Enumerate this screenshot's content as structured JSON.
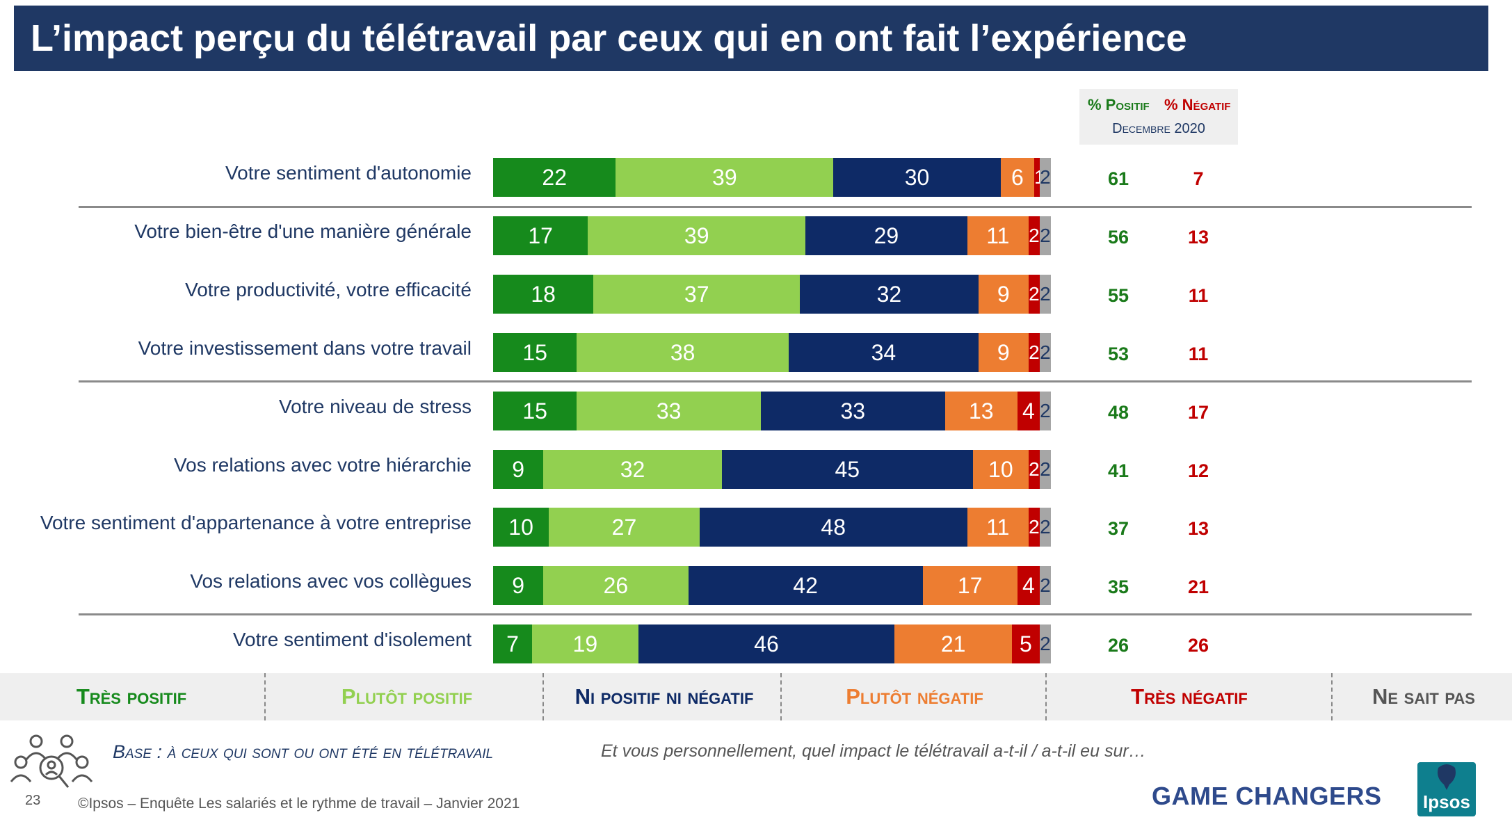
{
  "title": "L’impact perçu du télétravail par ceux qui en ont fait l’expérience",
  "header": {
    "positive_label": "% Positif",
    "negative_label": "% Négatif",
    "date": "Decembre 2020"
  },
  "colors": {
    "tres_positif": "#168a1c",
    "plutot_positif": "#92d050",
    "ni_ni": "#0e2a66",
    "plutot_negatif": "#ed7d31",
    "tres_negatif": "#c00000",
    "ne_sait_pas": "#a6a6a6",
    "title_bg": "#1f3864"
  },
  "chart_data": {
    "type": "bar",
    "orientation": "horizontal",
    "stacked": true,
    "categories": [
      "Votre sentiment d'autonomie",
      "Votre bien-être d'une manière générale",
      "Votre productivité, votre efficacité",
      "Votre investissement dans votre travail",
      "Votre niveau de stress",
      "Vos relations avec votre hiérarchie",
      "Votre sentiment d'appartenance à votre entreprise",
      "Vos relations avec vos collègues",
      "Votre sentiment d'isolement"
    ],
    "series": [
      {
        "name": "Très positif",
        "values": [
          22,
          17,
          18,
          15,
          15,
          9,
          10,
          9,
          7
        ]
      },
      {
        "name": "Plutôt positif",
        "values": [
          39,
          39,
          37,
          38,
          33,
          32,
          27,
          26,
          19
        ]
      },
      {
        "name": "Ni positif ni négatif",
        "values": [
          30,
          29,
          32,
          34,
          33,
          45,
          48,
          42,
          46
        ]
      },
      {
        "name": "Plutôt négatif",
        "values": [
          6,
          11,
          9,
          9,
          13,
          10,
          11,
          17,
          21
        ]
      },
      {
        "name": "Très négatif",
        "values": [
          1,
          2,
          2,
          2,
          4,
          2,
          2,
          4,
          5
        ]
      },
      {
        "name": "Ne sait pas",
        "values": [
          2,
          2,
          2,
          2,
          2,
          2,
          2,
          2,
          2
        ]
      }
    ],
    "positive_totals": [
      61,
      56,
      55,
      53,
      48,
      41,
      37,
      35,
      26
    ],
    "negative_totals": [
      7,
      13,
      11,
      11,
      17,
      12,
      13,
      21,
      26
    ],
    "legend": [
      "Très positif",
      "Plutôt positif",
      "Ni positif ni négatif",
      "Plutôt négatif",
      "Très négatif",
      "Ne sait pas"
    ],
    "legend_position": "bottom"
  },
  "footer": {
    "base": "Base : à ceux qui sont ou ont été en télétravail",
    "question": "Et vous personnellement, quel impact le télétravail a-t-il / a-t-il eu sur…",
    "page_number": "23",
    "credit": "©Ipsos – Enquête Les salariés et le rythme de travail – Janvier 2021",
    "tagline": "GAME CHANGERS",
    "logo_text": "Ipsos"
  }
}
